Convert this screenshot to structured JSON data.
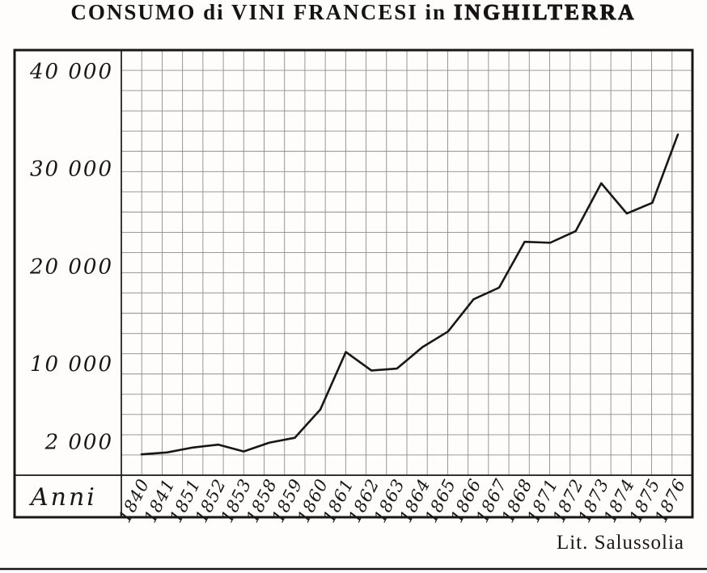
{
  "title": {
    "part1": "CONSUMO di VINI FRANCESI in",
    "part2": "INGHILTERRA"
  },
  "credit": "Lit. Salussolia",
  "chart_data": {
    "type": "line",
    "title": "CONSUMO di VINI FRANCESI in INGHILTERRA",
    "xlabel": "Anni",
    "ylabel": "",
    "x_labels": [
      "1840",
      "1841",
      "1851",
      "1852",
      "1853",
      "1858",
      "1859",
      "1860",
      "1861",
      "1862",
      "1863",
      "1864",
      "1865",
      "1866",
      "1867",
      "1868",
      "1871",
      "1872",
      "1873",
      "1874",
      "1875",
      "1876"
    ],
    "values": [
      700,
      900,
      1400,
      1700,
      1000,
      1900,
      2400,
      5300,
      11200,
      9300,
      9500,
      11700,
      13300,
      16600,
      17800,
      22500,
      22400,
      23600,
      28500,
      25400,
      26500,
      33500
    ],
    "y_ticks": [
      {
        "value": 40000,
        "label": "40 000"
      },
      {
        "value": 30000,
        "label": "30 000"
      },
      {
        "value": 20000,
        "label": "20 000"
      },
      {
        "value": 10000,
        "label": "10 000"
      },
      {
        "value": 2000,
        "label": "2 000"
      }
    ],
    "ylim": [
      0,
      41000
    ],
    "grid": true,
    "legend": "none"
  },
  "colors": {
    "ink": "#171717",
    "grid": "#8d8d8d",
    "paper": "#fefdfb"
  }
}
